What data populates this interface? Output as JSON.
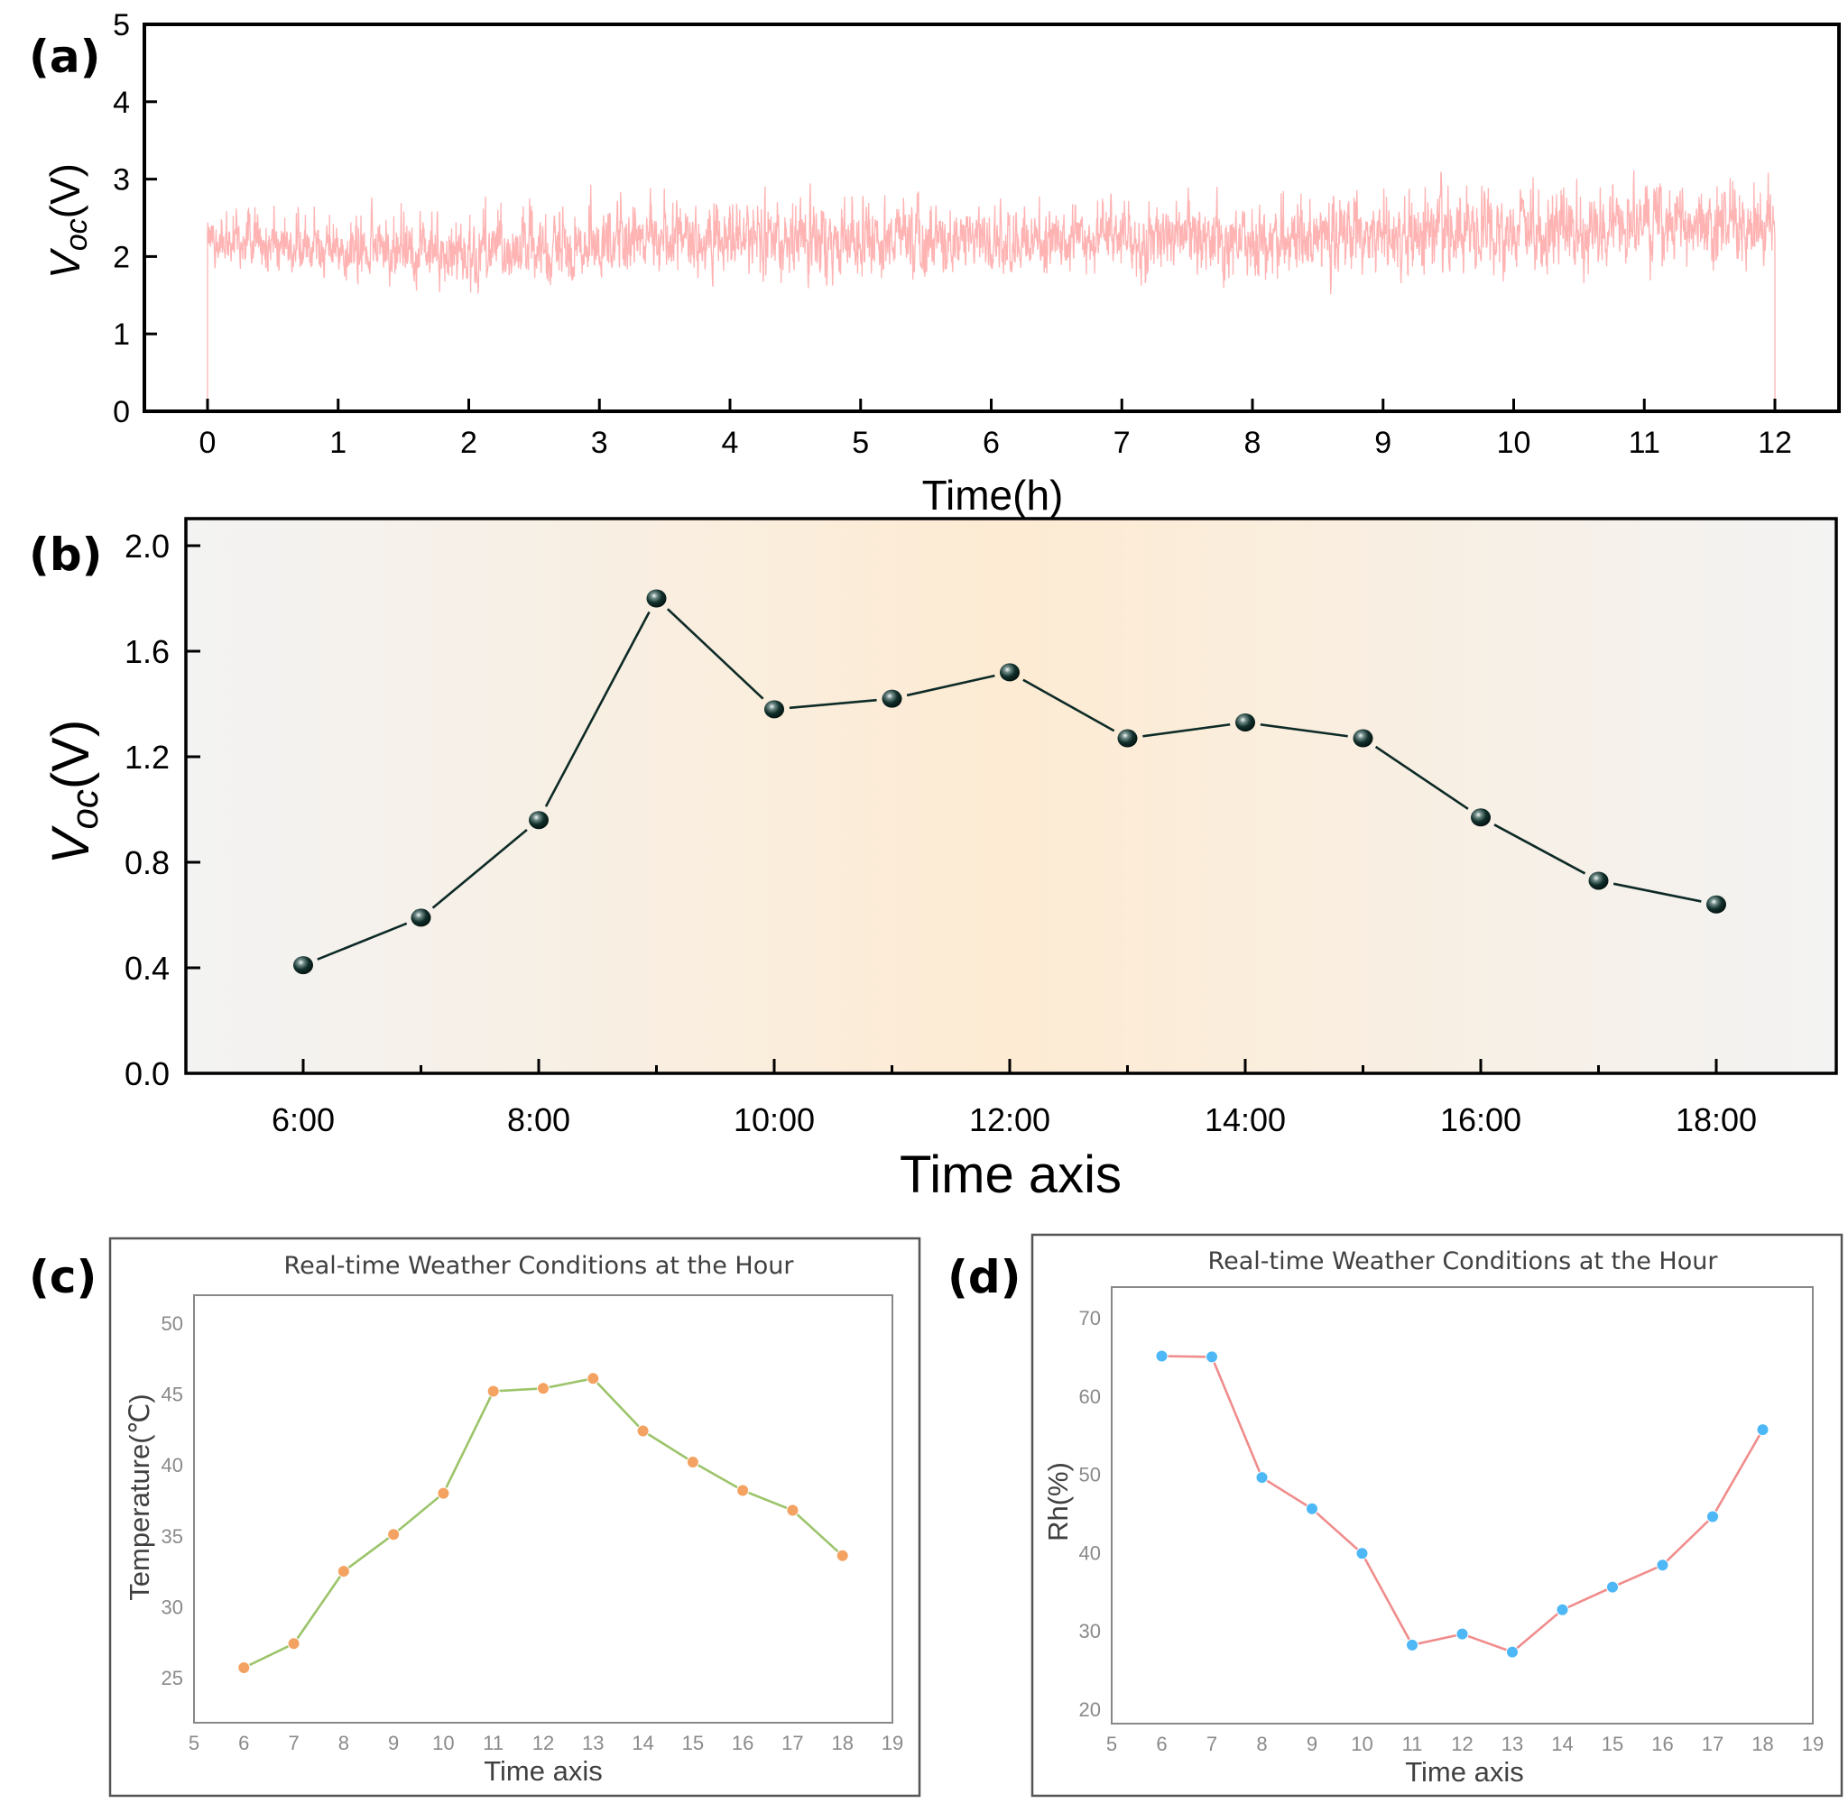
{
  "figure": {
    "panels": [
      "(a)",
      "(b)",
      "(c)",
      "(d)"
    ]
  },
  "chart_data": [
    {
      "id": "a",
      "type": "line",
      "panel_label": "(a)",
      "title": "",
      "xlabel": "Time(h)",
      "ylabel_main": "V",
      "ylabel_sub": "oc",
      "ylabel_unit": "(V)",
      "xlim": [
        -0.5,
        12.5
      ],
      "ylim": [
        0,
        5
      ],
      "xticks": [
        0,
        1,
        2,
        3,
        4,
        5,
        6,
        7,
        8,
        9,
        10,
        11,
        12
      ],
      "yticks": [
        0,
        1,
        2,
        3,
        4,
        5
      ],
      "grid": false,
      "line_color": "#FFB3B3",
      "description": "Dense noisy open-circuit voltage trace over 12 h; drops to 0 at t=0 and t=12",
      "hourly_envelope": {
        "x": [
          0,
          1,
          2,
          3,
          4,
          5,
          6,
          7,
          8,
          9,
          10,
          11,
          12
        ],
        "mean": [
          2.2,
          2.1,
          2.05,
          2.15,
          2.2,
          2.2,
          2.2,
          2.2,
          2.25,
          2.25,
          2.35,
          2.4,
          2.4
        ],
        "min": [
          1.6,
          1.5,
          1.2,
          1.4,
          1.4,
          1.25,
          1.4,
          1.35,
          1.35,
          1.3,
          1.4,
          1.4,
          1.6
        ],
        "max": [
          3.0,
          3.0,
          3.0,
          3.3,
          3.1,
          3.15,
          3.1,
          3.1,
          3.1,
          3.3,
          3.45,
          3.45,
          3.45
        ]
      }
    },
    {
      "id": "b",
      "type": "line",
      "panel_label": "(b)",
      "title": "",
      "xlabel": "Time axis",
      "ylabel_main": "V",
      "ylabel_sub": "oc",
      "ylabel_unit": "(V)",
      "categories": [
        "6:00",
        "7:00",
        "8:00",
        "9:00",
        "10:00",
        "11:00",
        "12:00",
        "13:00",
        "14:00",
        "15:00",
        "16:00",
        "17:00",
        "18:00"
      ],
      "x": [
        6,
        7,
        8,
        9,
        10,
        11,
        12,
        13,
        14,
        15,
        16,
        17,
        18
      ],
      "values": [
        0.41,
        0.59,
        0.96,
        1.8,
        1.38,
        1.42,
        1.52,
        1.27,
        1.33,
        1.27,
        0.97,
        0.73,
        0.64
      ],
      "xlim": [
        5,
        19
      ],
      "ylim": [
        0,
        2.1
      ],
      "xtick_labels": [
        "6:00",
        "8:00",
        "10:00",
        "12:00",
        "14:00",
        "16:00",
        "18:00"
      ],
      "xticks_major": [
        6,
        8,
        10,
        12,
        14,
        16,
        18
      ],
      "yticks": [
        "0.0",
        "0.4",
        "0.8",
        "1.2",
        "1.6",
        "2.0"
      ],
      "grid": false,
      "line_color": "#0d2a26",
      "marker_color": "#0d2a26",
      "background_gradient": [
        "#F3F3F3",
        "#FDEBD3",
        "#F3F3F3"
      ]
    },
    {
      "id": "c",
      "type": "line",
      "panel_label": "(c)",
      "title": "Real-time Weather Conditions at the Hour",
      "xlabel": "Time axis",
      "ylabel": "Temperature(℃)",
      "x": [
        6,
        7,
        8,
        9,
        10,
        11,
        12,
        13,
        14,
        15,
        16,
        17,
        18
      ],
      "values": [
        25.7,
        27.4,
        32.5,
        35.1,
        38.0,
        45.2,
        45.4,
        46.1,
        42.4,
        40.2,
        38.2,
        36.8,
        33.6
      ],
      "xlim": [
        5,
        19
      ],
      "ylim": [
        22,
        52
      ],
      "xticks": [
        "5",
        "6",
        "7",
        "8",
        "9",
        "10",
        "11",
        "12",
        "13",
        "14",
        "15",
        "16",
        "17",
        "18",
        "19"
      ],
      "yticks": [
        "25",
        "30",
        "35",
        "40",
        "45",
        "50"
      ],
      "grid": false,
      "line_color": "#9CC46A",
      "marker_color": "#F4A261"
    },
    {
      "id": "d",
      "type": "line",
      "panel_label": "(d)",
      "title": "Real-time Weather Conditions at the Hour",
      "xlabel": "Time axis",
      "ylabel": "Rh(%)",
      "x": [
        6,
        7,
        8,
        9,
        10,
        11,
        12,
        13,
        14,
        15,
        16,
        17,
        18
      ],
      "values": [
        65.1,
        65.0,
        49.6,
        45.6,
        39.9,
        28.2,
        29.6,
        27.3,
        32.7,
        35.6,
        38.4,
        44.6,
        55.7
      ],
      "xlim": [
        5,
        19
      ],
      "ylim": [
        18,
        73
      ],
      "xticks": [
        "5",
        "6",
        "7",
        "8",
        "9",
        "10",
        "11",
        "12",
        "13",
        "14",
        "15",
        "16",
        "17",
        "18",
        "19"
      ],
      "yticks": [
        "20",
        "30",
        "40",
        "50",
        "60",
        "70"
      ],
      "grid": false,
      "line_color": "#F08C8C",
      "marker_color": "#4DB8F5"
    }
  ]
}
